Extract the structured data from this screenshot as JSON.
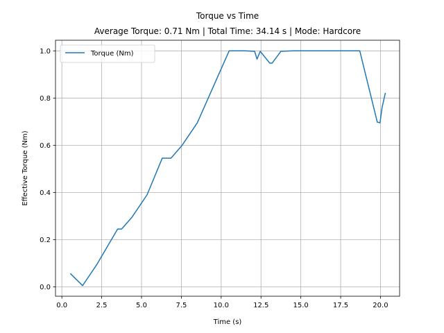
{
  "chart_data": {
    "type": "line",
    "title": "Torque vs Time",
    "subtitle": "Average Torque: 0.71 Nm | Total Time: 34.14 s | Mode: Hardcore",
    "xlabel": "Time (s)",
    "ylabel": "Effective Torque (Nm)",
    "xlim": [
      -0.4,
      21.2
    ],
    "ylim": [
      -0.04,
      1.045
    ],
    "xticks": [
      0.0,
      2.5,
      5.0,
      7.5,
      10.0,
      12.5,
      15.0,
      17.5,
      20.0
    ],
    "xtick_labels": [
      "0.0",
      "2.5",
      "5.0",
      "7.5",
      "10.0",
      "12.5",
      "15.0",
      "17.5",
      "20.0"
    ],
    "yticks": [
      0.0,
      0.2,
      0.4,
      0.6,
      0.8,
      1.0
    ],
    "ytick_labels": [
      "0.0",
      "0.2",
      "0.4",
      "0.6",
      "0.8",
      "1.0"
    ],
    "grid": true,
    "legend_position": "upper-left",
    "series": [
      {
        "name": "Torque (Nm)",
        "color": "#1f77b4",
        "points": [
          [
            0.55,
            0.055
          ],
          [
            1.3,
            0.005
          ],
          [
            2.2,
            0.095
          ],
          [
            3.5,
            0.245
          ],
          [
            3.75,
            0.245
          ],
          [
            4.4,
            0.295
          ],
          [
            5.35,
            0.39
          ],
          [
            6.3,
            0.545
          ],
          [
            6.85,
            0.545
          ],
          [
            7.55,
            0.6
          ],
          [
            8.5,
            0.695
          ],
          [
            10.5,
            1.0
          ],
          [
            11.5,
            1.0
          ],
          [
            12.1,
            0.998
          ],
          [
            12.25,
            0.965
          ],
          [
            12.45,
            0.998
          ],
          [
            13.05,
            0.948
          ],
          [
            13.2,
            0.948
          ],
          [
            13.75,
            0.998
          ],
          [
            14.5,
            1.0
          ],
          [
            18.7,
            1.0
          ],
          [
            19.8,
            0.698
          ],
          [
            19.97,
            0.695
          ],
          [
            20.1,
            0.76
          ],
          [
            20.3,
            0.82
          ]
        ]
      }
    ]
  }
}
